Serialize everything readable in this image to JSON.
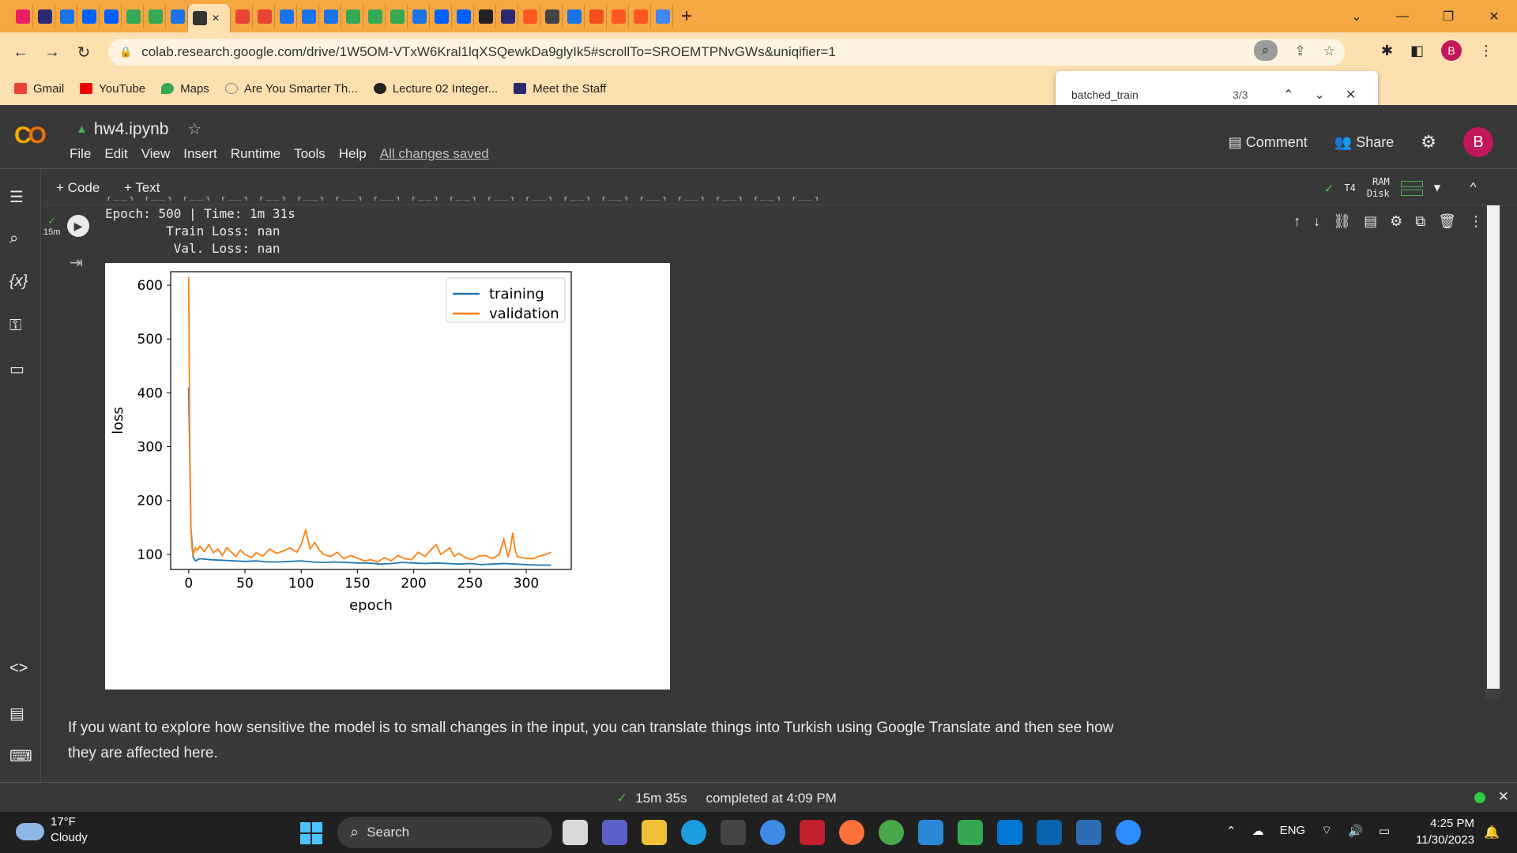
{
  "browser": {
    "tab_letters": [
      "g",
      "F",
      "z",
      "F",
      "z",
      "F",
      "F",
      "A",
      "",
      "I",
      "F",
      "(",
      "(",
      "F",
      "1",
      "z",
      "1",
      "z",
      "z",
      "z",
      "F",
      "(",
      "t",
      "(",
      "S",
      "A",
      "L",
      "F",
      "r"
    ],
    "url": "colab.research.google.com/drive/1W5OM-VTxW6Kral1lqXSQewkDa9glyIk5#scrollTo=SROEMTPNvGWs&uniqifier=1",
    "bookmarks": [
      "Gmail",
      "YouTube",
      "Maps",
      "Are You Smarter Th...",
      "Lecture 02 Integer...",
      "Meet the Staff"
    ],
    "profile_initial": "B"
  },
  "findbar": {
    "query": "batched_train",
    "count": "3/3"
  },
  "colab": {
    "notebook_name": "hw4.ipynb",
    "menu": [
      "File",
      "Edit",
      "View",
      "Insert",
      "Runtime",
      "Tools",
      "Help"
    ],
    "saved_status": "All changes saved",
    "comment": "Comment",
    "share": "Share",
    "user_initial": "B",
    "add_code": "+ Code",
    "add_text": "+ Text",
    "runtime": "T4",
    "ram": "RAM",
    "disk": "Disk"
  },
  "cell": {
    "exec_time": "15m",
    "output_lines": [
      "Epoch: 500 | Time: 1m 31s",
      "\tTrain Loss: nan",
      "\t Val. Loss: nan"
    ]
  },
  "chart_data": {
    "type": "line",
    "title": "",
    "xlabel": "epoch",
    "ylabel": "loss",
    "xlim": [
      -16,
      340
    ],
    "ylim": [
      72,
      625
    ],
    "xticks": [
      0,
      50,
      100,
      150,
      200,
      250,
      300
    ],
    "yticks": [
      100,
      200,
      300,
      400,
      500,
      600
    ],
    "legend_position": "top-right",
    "series": [
      {
        "name": "training",
        "color": "#1f77b4",
        "x": [
          0,
          2,
          4,
          6,
          10,
          20,
          30,
          40,
          50,
          60,
          70,
          80,
          90,
          100,
          110,
          120,
          130,
          140,
          150,
          160,
          170,
          180,
          190,
          200,
          210,
          220,
          230,
          240,
          250,
          260,
          270,
          280,
          290,
          300,
          310,
          322
        ],
        "y": [
          410,
          150,
          95,
          88,
          92,
          90,
          89,
          88,
          87,
          88,
          86,
          86,
          87,
          88,
          86,
          85,
          86,
          85,
          84,
          84,
          82,
          83,
          85,
          84,
          83,
          84,
          83,
          82,
          83,
          81,
          82,
          83,
          82,
          81,
          80,
          80
        ]
      },
      {
        "name": "validation",
        "color": "#ff7f0e",
        "x": [
          0,
          1,
          2,
          3,
          4,
          6,
          8,
          10,
          14,
          18,
          22,
          26,
          30,
          34,
          38,
          42,
          46,
          50,
          56,
          60,
          66,
          72,
          78,
          84,
          90,
          96,
          100,
          104,
          108,
          112,
          116,
          120,
          126,
          132,
          138,
          144,
          150,
          156,
          162,
          168,
          174,
          180,
          186,
          192,
          198,
          204,
          210,
          216,
          220,
          224,
          228,
          232,
          236,
          240,
          246,
          252,
          258,
          264,
          270,
          276,
          280,
          284,
          286,
          288,
          290,
          292,
          296,
          300,
          306,
          312,
          318,
          322
        ],
        "y": [
          615,
          300,
          150,
          110,
          100,
          112,
          108,
          115,
          105,
          118,
          103,
          110,
          98,
          112,
          104,
          96,
          108,
          100,
          94,
          103,
          97,
          110,
          102,
          106,
          112,
          104,
          118,
          145,
          110,
          122,
          108,
          100,
          96,
          104,
          92,
          98,
          93,
          88,
          90,
          86,
          94,
          88,
          98,
          92,
          90,
          104,
          96,
          110,
          118,
          100,
          106,
          112,
          96,
          102,
          94,
          90,
          97,
          98,
          92,
          100,
          128,
          95,
          112,
          140,
          110,
          96,
          94,
          93,
          92,
          97,
          100,
          104
        ]
      }
    ]
  },
  "text_cell": "If you want to explore how sensitive the model is to small changes in the input, you can translate things into Turkish using Google Translate and then see how they are affected here.",
  "status": {
    "duration": "15m 35s",
    "completed": "completed at 4:09 PM"
  },
  "taskbar": {
    "temp": "17°F",
    "weather": "Cloudy",
    "search": "Search",
    "lang": "ENG",
    "time": "4:25 PM",
    "date": "11/30/2023"
  }
}
